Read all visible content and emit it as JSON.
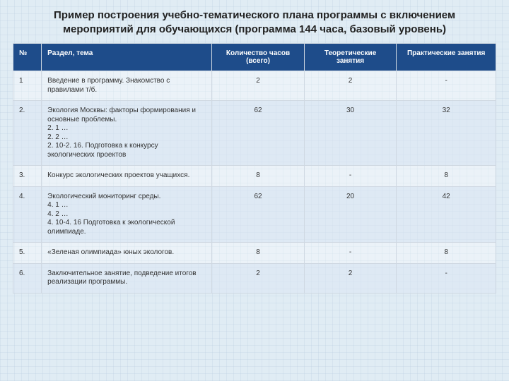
{
  "title": "Пример построения учебно-тематического плана программы с включением мероприятий для обучающихся (программа 144 часа, базовый уровень)",
  "columns": {
    "num": "№",
    "topic": "Раздел, тема",
    "hours": "Количество часов (всего)",
    "theory": "Теоретические занятия",
    "practice": "Практические занятия"
  },
  "rows": [
    {
      "num": "1",
      "topic": "Введение в программу. Знакомство с правилами т/б.",
      "hours": "2",
      "theory": "2",
      "practice": "-"
    },
    {
      "num": "2.",
      "topic": "Экология Москвы: факторы формирования и основные проблемы.\n2. 1 …\n2. 2 …\n2. 10-2. 16. Подготовка к конкурсу экологических проектов",
      "hours": "62",
      "theory": "30",
      "practice": "32"
    },
    {
      "num": "3.",
      "topic": "Конкурс экологических проектов учащихся.",
      "hours": "8",
      "theory": "-",
      "practice": "8"
    },
    {
      "num": "4.",
      "topic": "Экологический мониторинг среды.\n4. 1 …\n4. 2 …\n4. 10-4. 16 Подготовка к экологической олимпиаде.",
      "hours": "62",
      "theory": "20",
      "practice": "42"
    },
    {
      "num": "5.",
      "topic": "«Зеленая олимпиада» юных экологов.",
      "hours": "8",
      "theory": "-",
      "practice": "8"
    },
    {
      "num": "6.",
      "topic": "Заключительное занятие, подведение итогов реализации программы.",
      "hours": "2",
      "theory": "2",
      "practice": "-"
    }
  ]
}
